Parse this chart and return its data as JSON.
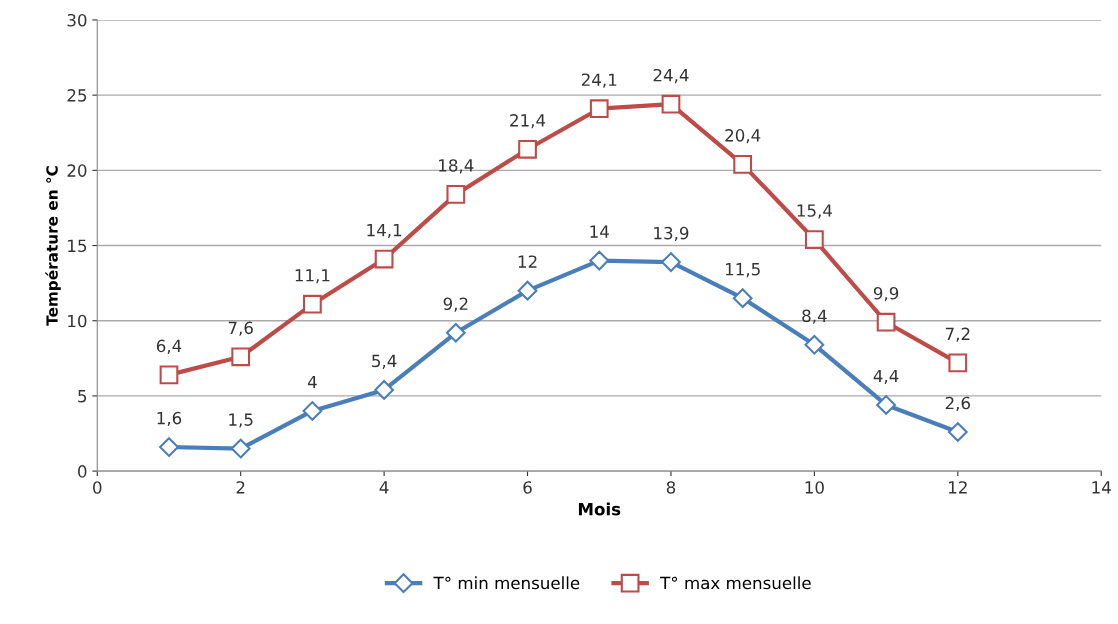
{
  "chart_data": {
    "type": "line",
    "xlabel": "Mois",
    "ylabel": "Température en °C",
    "x": [
      1,
      2,
      3,
      4,
      5,
      6,
      7,
      8,
      9,
      10,
      11,
      12
    ],
    "series": [
      {
        "name": "T° min mensuelle",
        "color": "#4a7ebb",
        "marker": "diamond",
        "values": [
          1.6,
          1.5,
          4,
          5.4,
          9.2,
          12,
          14,
          13.9,
          11.5,
          8.4,
          4.4,
          2.6
        ],
        "value_labels": [
          "1,6",
          "1,5",
          "4",
          "5,4",
          "9,2",
          "12",
          "14",
          "13,9",
          "11,5",
          "8,4",
          "4,4",
          "2,6"
        ]
      },
      {
        "name": "T° max mensuelle",
        "color": "#be4b48",
        "marker": "square",
        "values": [
          6.4,
          7.6,
          11.1,
          14.1,
          18.4,
          21.4,
          24.1,
          24.4,
          20.4,
          15.4,
          9.9,
          7.2
        ],
        "value_labels": [
          "6,4",
          "7,6",
          "11,1",
          "14,1",
          "18,4",
          "21,4",
          "24,1",
          "24,4",
          "20,4",
          "15,4",
          "9,9",
          "7,2"
        ]
      }
    ],
    "xlim": [
      0,
      14
    ],
    "xticks": [
      0,
      2,
      4,
      6,
      8,
      10,
      12,
      14
    ],
    "ylim": [
      0,
      30
    ],
    "yticks": [
      0,
      5,
      10,
      15,
      20,
      25,
      30
    ],
    "grid": "y",
    "legend": "bottom",
    "line_style": "solid"
  }
}
